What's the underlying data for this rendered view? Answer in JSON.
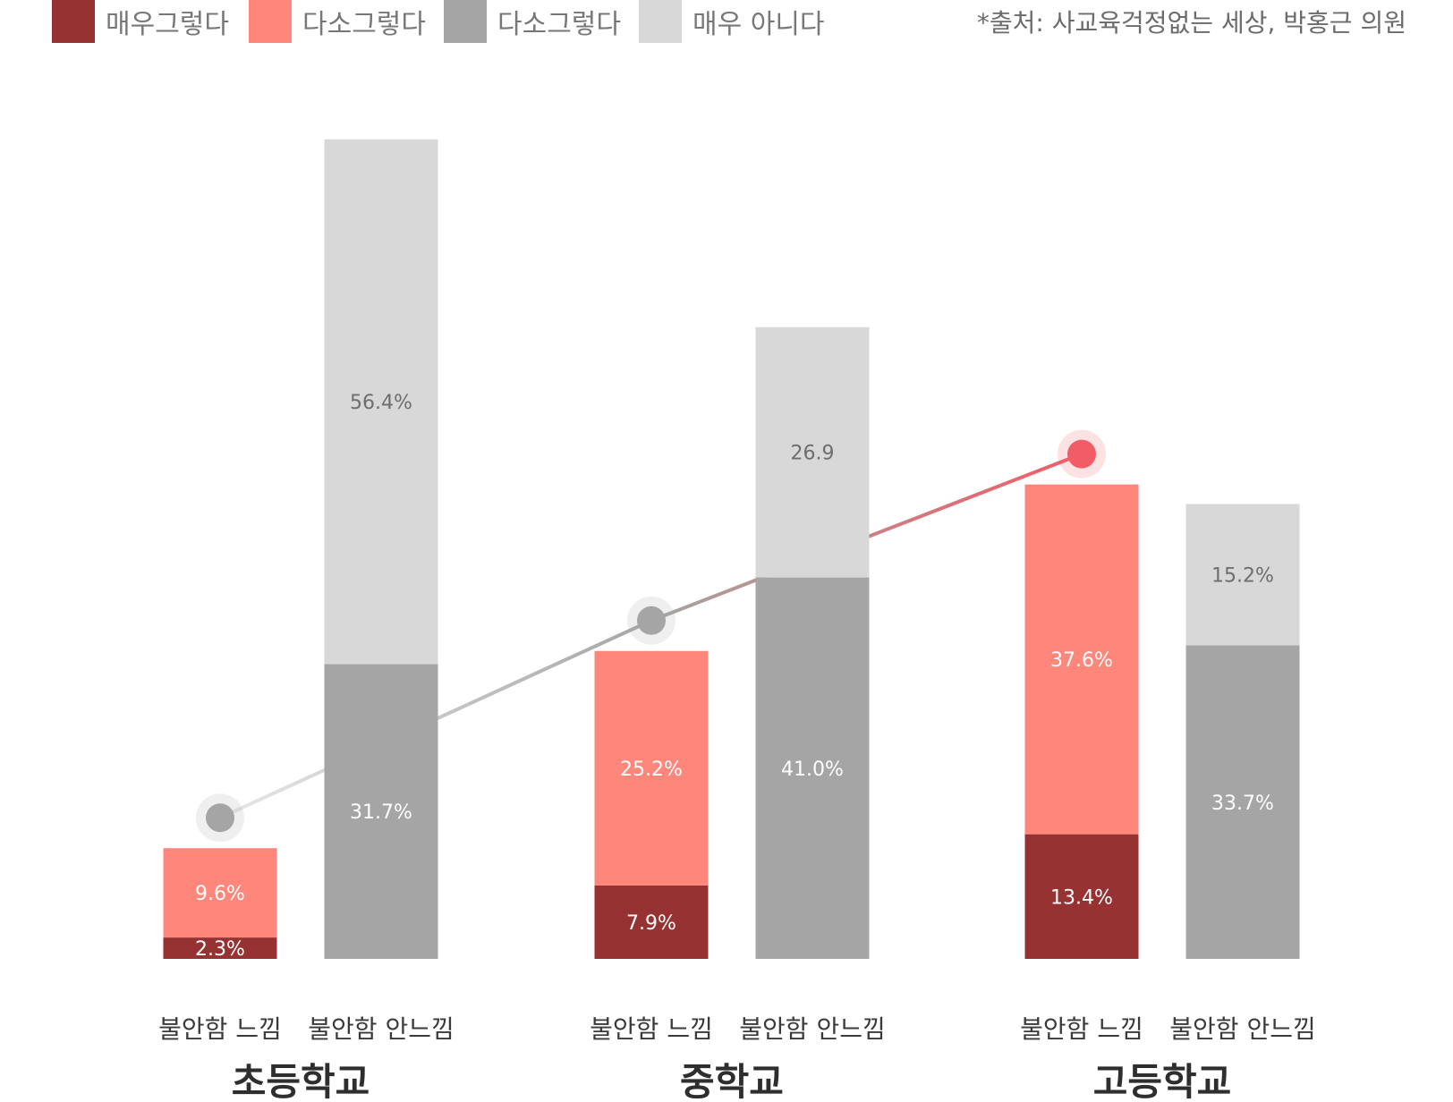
{
  "legend": {
    "items": [
      {
        "label": "매우그렇다",
        "color": "#963232"
      },
      {
        "label": "다소그렇다",
        "color": "#ff867b"
      },
      {
        "label": "다소그렇다",
        "color": "#a4a5a4"
      },
      {
        "label": "매우 아니다",
        "color": "#d8d8d8"
      }
    ]
  },
  "source_note": "*출처: 사교육걱정없는 세상, 박홍근 의원",
  "chart_data": {
    "type": "bar",
    "stacked": true,
    "groups": [
      "초등학교",
      "중학교",
      "고등학교"
    ],
    "bars": [
      "불안함 느낌",
      "불안함 안느낌"
    ],
    "stacks": {
      "불안함 느낌": [
        {
          "legend_index": 0,
          "values": [
            2.3,
            7.9,
            13.4
          ],
          "labels": [
            "2.3%",
            "7.9%",
            "13.4%"
          ]
        },
        {
          "legend_index": 1,
          "values": [
            9.6,
            25.2,
            37.6
          ],
          "labels": [
            "9.6%",
            "25.2%",
            "37.6%"
          ]
        }
      ],
      "불안함 안느낌": [
        {
          "legend_index": 2,
          "values": [
            31.7,
            41.0,
            33.7
          ],
          "labels": [
            "31.7%",
            "41.0%",
            "33.7%"
          ]
        },
        {
          "legend_index": 3,
          "values": [
            56.4,
            26.9,
            15.2
          ],
          "labels": [
            "56.4%",
            "26.9",
            "15.2%"
          ]
        }
      ]
    },
    "trend_line": {
      "values": [
        11.9,
        33.1,
        51.0
      ],
      "colors": [
        "#a4a5a4",
        "#a4a5a4",
        "#f25c66"
      ]
    },
    "colors": {
      "label_light": "#ffffff",
      "label_dark": "#6e6e6e",
      "axis_text": "#3a3a3a",
      "group_text": "#2e2e2e"
    },
    "legend_position": "top-left",
    "grid": false
  }
}
